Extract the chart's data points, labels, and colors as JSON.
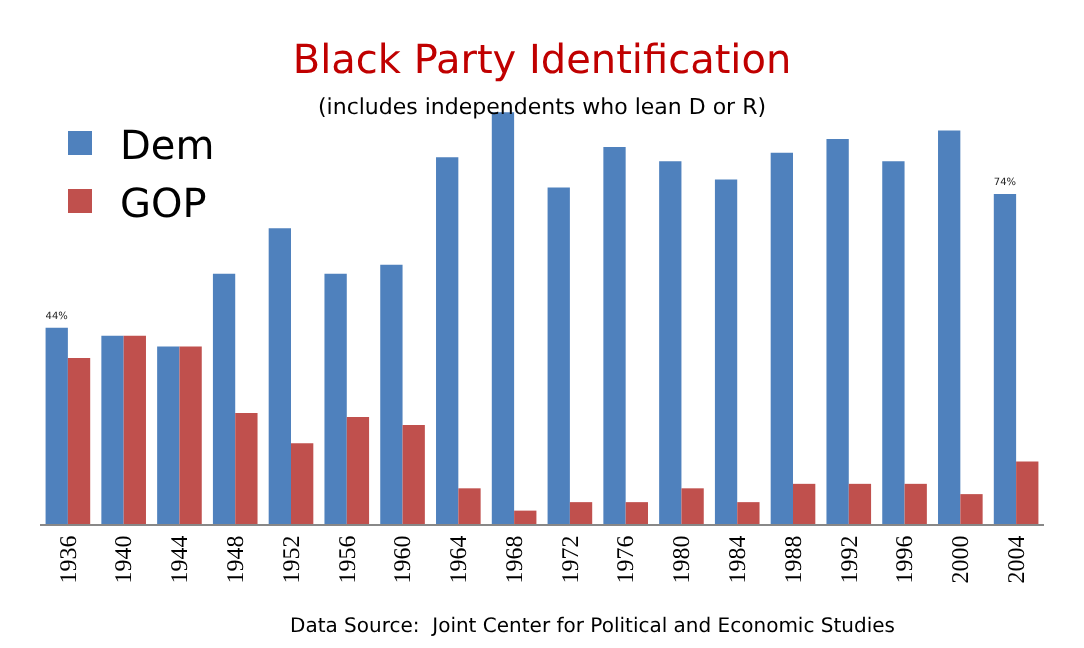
{
  "chart_data": {
    "type": "bar",
    "title": "Black Party Identification",
    "subtitle": "(includes independents who lean D or R)",
    "categories": [
      "1936",
      "1940",
      "1944",
      "1948",
      "1952",
      "1956",
      "1960",
      "1964",
      "1968",
      "1972",
      "1976",
      "1980",
      "1984",
      "1988",
      "1992",
      "1996",
      "2000",
      "2004"
    ],
    "series": [
      {
        "name": "Dem",
        "color": "#4f81bd",
        "values": [
          44,
          42.2,
          39.8,
          56.1,
          66.3,
          56.1,
          58.1,
          82.2,
          92.3,
          75.4,
          84.5,
          81.3,
          77.2,
          83.2,
          86.3,
          81.3,
          88.2,
          74
        ],
        "value_labels": [
          "44%",
          null,
          null,
          null,
          null,
          null,
          null,
          null,
          null,
          null,
          null,
          null,
          null,
          null,
          null,
          null,
          null,
          "74%"
        ]
      },
      {
        "name": "GOP",
        "color": "#c0504d",
        "values": [
          37.2,
          42.2,
          39.8,
          24.9,
          18.1,
          24,
          22.2,
          8,
          3,
          4.9,
          4.9,
          8,
          4.9,
          9,
          9,
          9,
          6.7,
          14
        ]
      }
    ],
    "legend": "top left",
    "annotations": [
      "Data Source:  Joint Center for Political and Economic Studies"
    ]
  }
}
